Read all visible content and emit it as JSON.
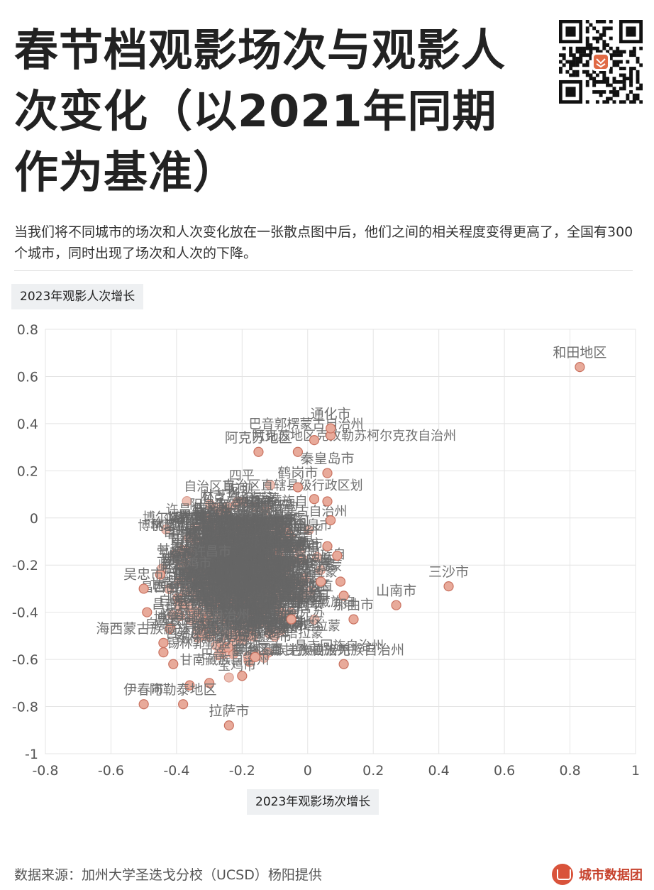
{
  "header": {
    "title": "春节档观影场次与观影人次变化（以2021年同期作为基准）",
    "subtitle": "当我们将不同城市的场次和人次变化放在一张散点图中后，他们之间的相关程度变得更高了，全国有300个城市，同时出现了场次和人次的下降。"
  },
  "footer": {
    "source": "数据来源：加州大学圣迭戈分校（UCSD）杨阳提供",
    "brand": "城市数据团"
  },
  "colors": {
    "point_fill": "#e8aa9a",
    "point_stroke": "#c9715f",
    "label": "#707070",
    "cluster_text": "#666666",
    "grid": "#e4e4e4",
    "axis_text": "#555555"
  },
  "chart_data": {
    "type": "scatter",
    "xlabel": "2023年观影场次增长",
    "ylabel": "2023年观影人次增长",
    "xlim": [
      -0.8,
      1
    ],
    "ylim": [
      -1,
      0.8
    ],
    "xticks": [
      -0.8,
      -0.6,
      -0.4,
      -0.2,
      0,
      0.2,
      0.4,
      0.6,
      0.8,
      1
    ],
    "yticks": [
      -1,
      -0.8,
      -0.6,
      -0.4,
      -0.2,
      0,
      0.2,
      0.4,
      0.6,
      0.8
    ],
    "grid": true,
    "labeled_points": [
      {
        "label": "和田地区",
        "x": 0.83,
        "y": 0.64
      },
      {
        "label": "三沙市",
        "x": 0.43,
        "y": -0.29
      },
      {
        "label": "山南市",
        "x": 0.27,
        "y": -0.37
      },
      {
        "label": "那曲市",
        "x": 0.14,
        "y": -0.43
      },
      {
        "label": "通化市",
        "x": 0.07,
        "y": 0.38
      },
      {
        "label": "阿克苏地区",
        "x": -0.15,
        "y": 0.28
      },
      {
        "label": "秦皇岛市",
        "x": 0.06,
        "y": 0.19
      },
      {
        "label": "鹤岗市",
        "x": -0.03,
        "y": 0.13
      },
      {
        "label": "伊春市",
        "x": -0.5,
        "y": -0.79
      },
      {
        "label": "阿勒泰地区",
        "x": -0.38,
        "y": -0.79
      },
      {
        "label": "拉萨市",
        "x": -0.24,
        "y": -0.88
      },
      {
        "label": "海西蒙古族藏族自治州",
        "x": -0.44,
        "y": -0.53
      },
      {
        "label": "吴忠市",
        "x": -0.5,
        "y": -0.3
      },
      {
        "label": "甘孜藏族羌族自治州",
        "x": 0.11,
        "y": -0.62
      }
    ],
    "unlabeled_points": [
      {
        "x": 0.02,
        "y": 0.33
      },
      {
        "x": -0.03,
        "y": 0.28
      },
      {
        "x": 0.07,
        "y": 0.35
      },
      {
        "x": 0.02,
        "y": 0.08
      },
      {
        "x": 0.06,
        "y": 0.07
      },
      {
        "x": 0.07,
        "y": -0.01
      },
      {
        "x": 0.06,
        "y": -0.12
      },
      {
        "x": 0.09,
        "y": -0.16
      },
      {
        "x": 0.11,
        "y": -0.33
      },
      {
        "x": 0.1,
        "y": -0.27
      },
      {
        "x": -0.49,
        "y": -0.4
      },
      {
        "x": -0.44,
        "y": -0.57
      },
      {
        "x": -0.41,
        "y": -0.62
      },
      {
        "x": -0.3,
        "y": -0.7
      },
      {
        "x": -0.2,
        "y": -0.67
      },
      {
        "x": -0.36,
        "y": -0.71
      },
      {
        "x": -0.16,
        "y": -0.59
      },
      {
        "x": 0.04,
        "y": -0.27
      },
      {
        "x": -0.05,
        "y": -0.43
      },
      {
        "x": -0.45,
        "y": -0.24
      },
      {
        "x": -0.42,
        "y": -0.47
      }
    ],
    "cluster_label_fragments": [
      "巴音郭楞蒙古自治州",
      "阿克苏地区克孜勒苏柯尔克孜自治州",
      "自治区直辖县级行政区划",
      "博尔塔拉蒙古自治州",
      "黑河市",
      "阳泉市",
      "许昌市",
      "宝鸡市",
      "四平市",
      "临夏回族自治州",
      "锡林郭勒盟",
      "甘南藏族自治州",
      "阿坝藏族羌族自治州",
      "林芝地区",
      "塔城地区",
      "昌吉回族自治州"
    ]
  }
}
